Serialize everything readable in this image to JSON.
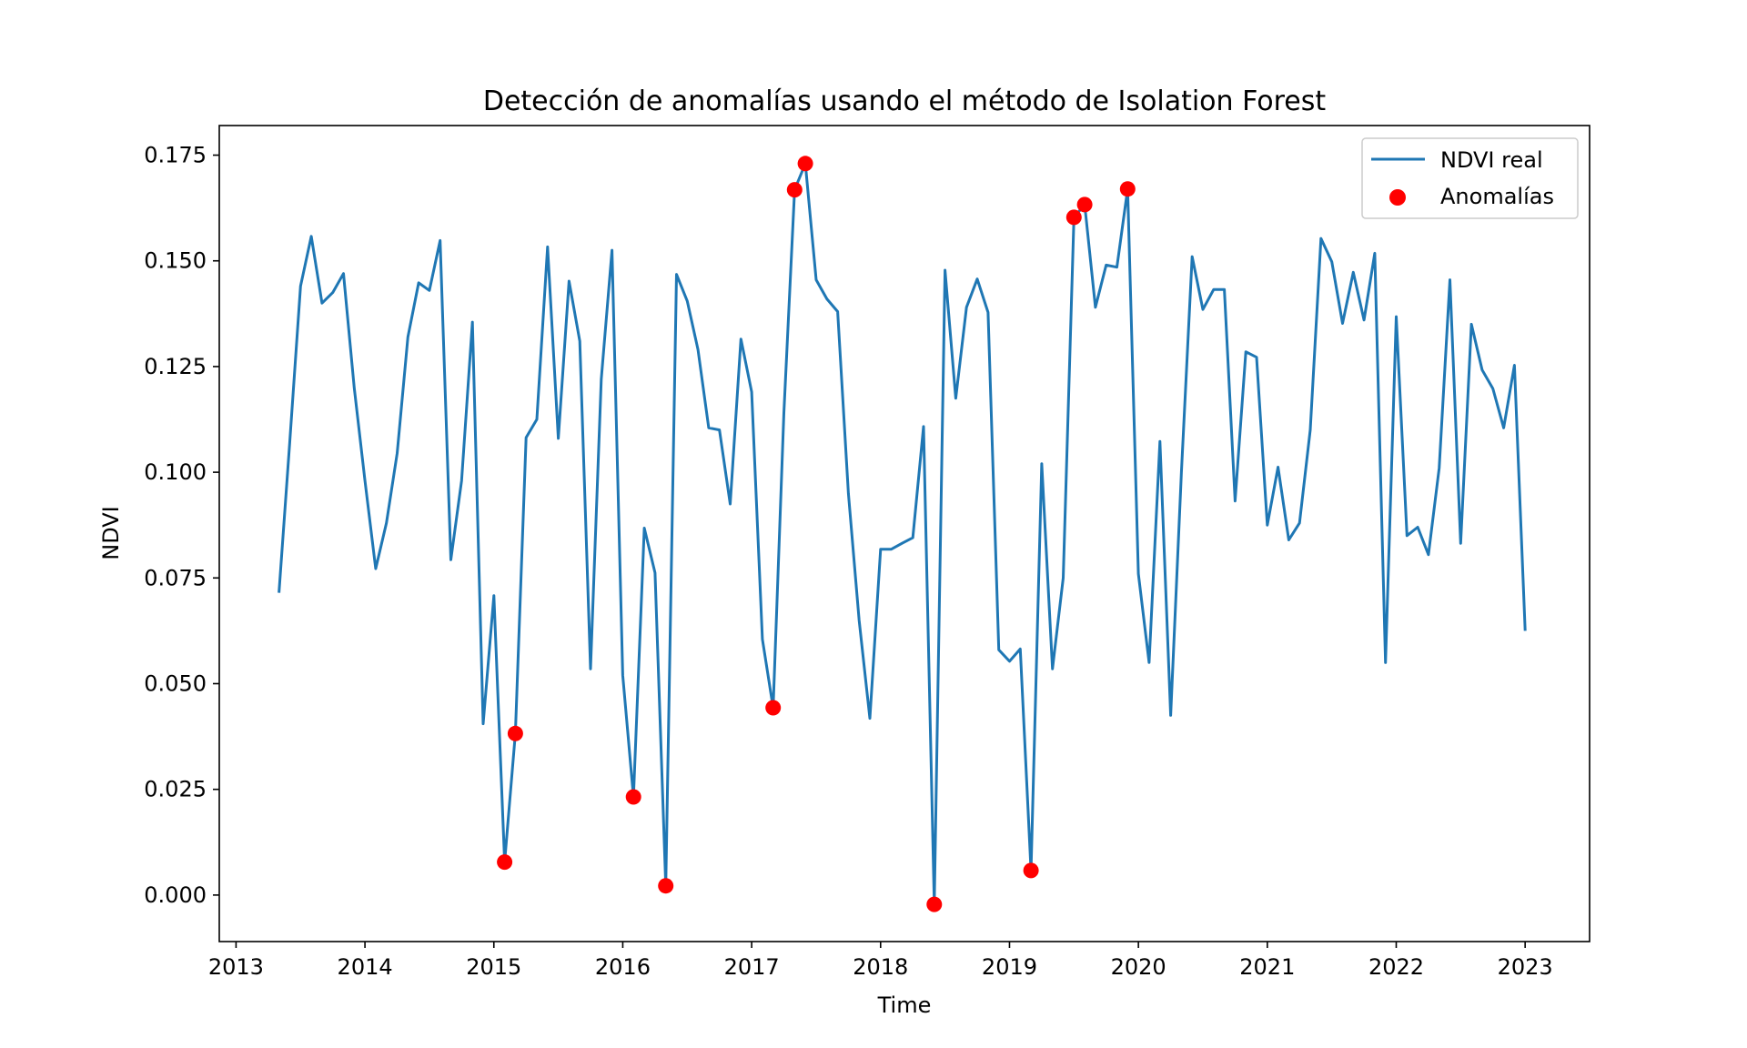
{
  "chart_data": {
    "type": "line",
    "title": "Detección de anomalías usando el método de Isolation Forest",
    "xlabel": "Time",
    "ylabel": "NDVI",
    "xlim": [
      2012.87,
      2023.5
    ],
    "ylim": [
      -0.011,
      0.182
    ],
    "grid": false,
    "legend_position": "top-right",
    "x_ticks": [
      "2013",
      "2014",
      "2015",
      "2016",
      "2017",
      "2018",
      "2019",
      "2020",
      "2021",
      "2022",
      "2023"
    ],
    "y_ticks": [
      "0.000",
      "0.025",
      "0.050",
      "0.075",
      "0.100",
      "0.125",
      "0.150",
      "0.175"
    ],
    "colors": {
      "line": "#1f77b4",
      "anomaly": "#ff0000"
    },
    "series": [
      {
        "name": "NDVI real",
        "type": "line",
        "x": [
          "2013-05",
          "2013-06",
          "2013-07",
          "2013-08",
          "2013-09",
          "2013-10",
          "2013-11",
          "2013-12",
          "2014-01",
          "2014-02",
          "2014-03",
          "2014-04",
          "2014-05",
          "2014-06",
          "2014-07",
          "2014-08",
          "2014-09",
          "2014-10",
          "2014-11",
          "2014-12",
          "2015-01",
          "2015-02",
          "2015-03",
          "2015-04",
          "2015-05",
          "2015-06",
          "2015-07",
          "2015-08",
          "2015-09",
          "2015-10",
          "2015-11",
          "2015-12",
          "2016-01",
          "2016-02",
          "2016-03",
          "2016-04",
          "2016-05",
          "2016-06",
          "2016-07",
          "2016-08",
          "2016-09",
          "2016-10",
          "2016-11",
          "2016-12",
          "2017-01",
          "2017-02",
          "2017-03",
          "2017-04",
          "2017-05",
          "2017-06",
          "2017-07",
          "2017-08",
          "2017-09",
          "2017-10",
          "2017-11",
          "2017-12",
          "2018-01",
          "2018-02",
          "2018-03",
          "2018-04",
          "2018-05",
          "2018-06",
          "2018-07",
          "2018-08",
          "2018-09",
          "2018-10",
          "2018-11",
          "2018-12",
          "2019-01",
          "2019-02",
          "2019-03",
          "2019-04",
          "2019-05",
          "2019-06",
          "2019-07",
          "2019-08",
          "2019-09",
          "2019-10",
          "2019-11",
          "2019-12",
          "2020-01",
          "2020-02",
          "2020-03",
          "2020-04",
          "2020-05",
          "2020-06",
          "2020-07",
          "2020-08",
          "2020-09",
          "2020-10",
          "2020-11",
          "2020-12",
          "2021-01",
          "2021-02",
          "2021-03",
          "2021-04",
          "2021-05",
          "2021-06",
          "2021-07",
          "2021-08",
          "2021-09",
          "2021-10",
          "2021-11",
          "2021-12",
          "2022-01",
          "2022-02",
          "2022-03",
          "2022-04",
          "2022-05",
          "2022-06",
          "2022-07",
          "2022-08",
          "2022-09",
          "2022-10",
          "2022-11",
          "2022-12",
          "2023-01"
        ],
        "y": [
          0.0715,
          0.107,
          0.144,
          0.1558,
          0.14,
          0.1425,
          0.147,
          0.12,
          0.098,
          0.0772,
          0.088,
          0.1045,
          0.132,
          0.1448,
          0.143,
          0.1548,
          0.0793,
          0.098,
          0.1355,
          0.0405,
          0.0708,
          0.0078,
          0.0382,
          0.1082,
          0.1125,
          0.1533,
          0.108,
          0.1452,
          0.131,
          0.0535,
          0.122,
          0.1525,
          0.052,
          0.0232,
          0.0868,
          0.0762,
          0.0022,
          0.1468,
          0.1405,
          0.129,
          0.1105,
          0.11,
          0.0925,
          0.1315,
          0.119,
          0.0605,
          0.0443,
          0.114,
          0.1668,
          0.173,
          0.1455,
          0.141,
          0.138,
          0.095,
          0.065,
          0.0418,
          0.0818,
          0.0818,
          0.0832,
          0.0845,
          0.1108,
          -0.0022,
          0.1478,
          0.1175,
          0.139,
          0.1457,
          0.1378,
          0.058,
          0.0553,
          0.0582,
          0.0058,
          0.102,
          0.0535,
          0.075,
          0.1603,
          0.1633,
          0.139,
          0.149,
          0.1485,
          0.167,
          0.076,
          0.055,
          0.1073,
          0.0425,
          0.1,
          0.151,
          0.1385,
          0.1432,
          0.1432,
          0.0932,
          0.1285,
          0.1272,
          0.0875,
          0.1012,
          0.084,
          0.088,
          0.11,
          0.1553,
          0.1498,
          0.1352,
          0.1473,
          0.136,
          0.1518,
          0.055,
          0.1368,
          0.085,
          0.087,
          0.0805,
          0.101,
          0.1455,
          0.0832,
          0.135,
          0.1242,
          0.1198,
          0.1105,
          0.1253,
          0.0625
        ]
      },
      {
        "name": "Anomalías",
        "type": "scatter",
        "x": [
          "2015-02",
          "2015-03",
          "2016-02",
          "2016-05",
          "2017-03",
          "2017-05",
          "2017-06",
          "2018-06",
          "2019-03",
          "2019-07",
          "2019-08",
          "2019-12"
        ],
        "y": [
          0.0078,
          0.0382,
          0.0232,
          0.0022,
          0.0443,
          0.1668,
          0.173,
          -0.0022,
          0.0058,
          0.1603,
          0.1633,
          0.167
        ]
      }
    ]
  }
}
